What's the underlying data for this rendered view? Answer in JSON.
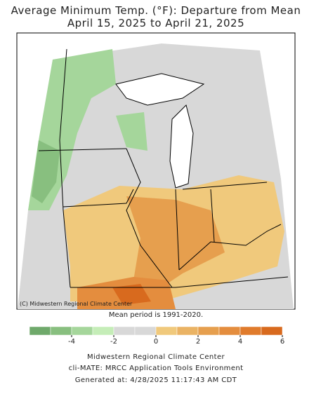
{
  "title": "Average Minimum Temp. (°F): Departure from Mean",
  "subtitle": "April 15, 2025 to April 21, 2025",
  "map": {
    "credit": "(C) Midwestern Regional Climate Center"
  },
  "note": "Mean period is 1991-2020.",
  "legend": {
    "range": [
      -6,
      6
    ],
    "ticks": [
      -4,
      -2,
      0,
      2,
      4,
      6
    ],
    "colors": [
      "#6fa96b",
      "#88bf7f",
      "#a5d69b",
      "#c5edb8",
      "#d8d8d8",
      "#d8d8d8",
      "#f0c97c",
      "#eab364",
      "#e69f4e",
      "#e48d3e",
      "#e07b2c",
      "#d86a1e"
    ]
  },
  "footer": [
    "Midwestern Regional Climate Center",
    "cli-MATE: MRCC Application Tools Environment",
    "Generated at: 4/28/2025 11:17:43 AM CDT"
  ]
}
